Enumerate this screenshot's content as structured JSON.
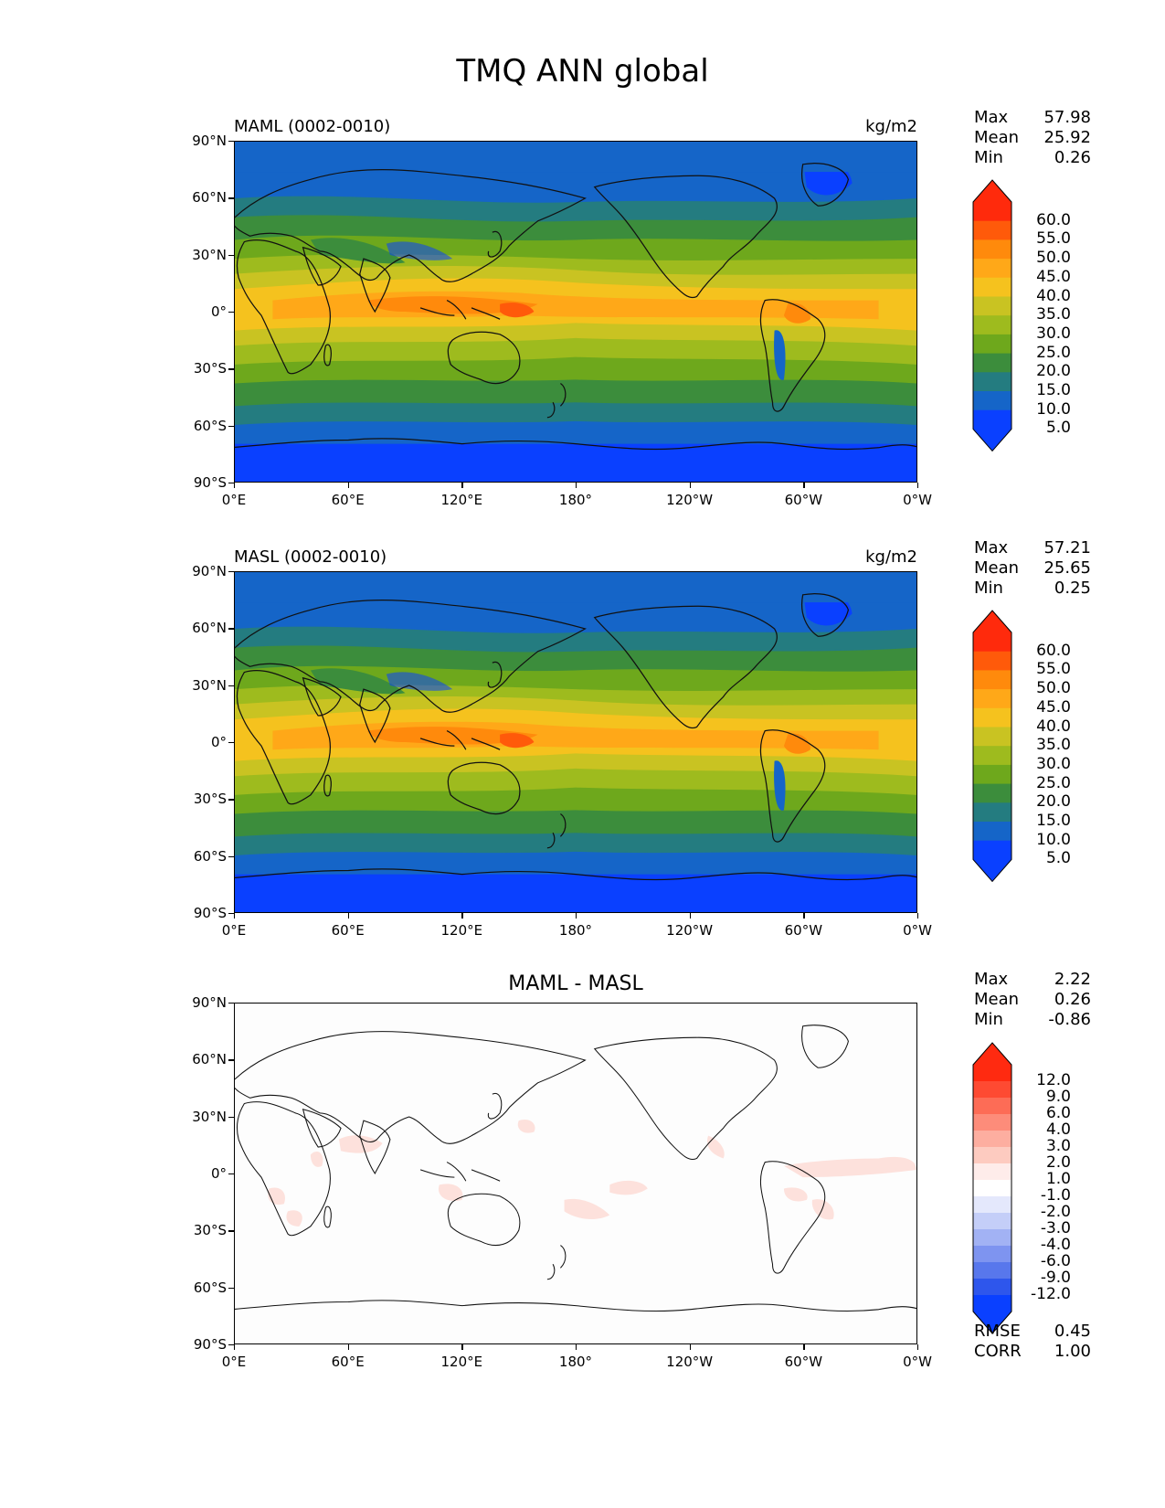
{
  "figure": {
    "title": "TMQ ANN global"
  },
  "axes": {
    "y_ticks": [
      "90°N",
      "60°N",
      "30°N",
      "0°",
      "30°S",
      "60°S",
      "90°S"
    ],
    "x_ticks": [
      "0°E",
      "60°E",
      "120°E",
      "180°",
      "120°W",
      "60°W",
      "0°W"
    ]
  },
  "panels": [
    {
      "left_title": "MAML (0002-0010)",
      "right_title": "kg/m2",
      "stats": [
        {
          "label": "Max",
          "value": "57.98"
        },
        {
          "label": "Mean",
          "value": "25.92"
        },
        {
          "label": "Min",
          "value": "0.26"
        }
      ]
    },
    {
      "left_title": "MASL (0002-0010)",
      "right_title": "kg/m2",
      "stats": [
        {
          "label": "Max",
          "value": "57.21"
        },
        {
          "label": "Mean",
          "value": "25.65"
        },
        {
          "label": "Min",
          "value": "0.25"
        }
      ]
    },
    {
      "center_title": "MAML - MASL",
      "stats": [
        {
          "label": "Max",
          "value": "2.22"
        },
        {
          "label": "Mean",
          "value": "0.26"
        },
        {
          "label": "Min",
          "value": "-0.86"
        }
      ],
      "extra_stats": [
        {
          "label": "RMSE",
          "value": "0.45"
        },
        {
          "label": "CORR",
          "value": "1.00"
        }
      ]
    }
  ],
  "colorbars": {
    "field": {
      "labels": [
        "60.0",
        "55.0",
        "50.0",
        "45.0",
        "40.0",
        "35.0",
        "30.0",
        "25.0",
        "20.0",
        "15.0",
        "10.0",
        "5.0"
      ],
      "colors": [
        "#ff2a0c",
        "#ff5a0a",
        "#ff8a0c",
        "#ffa818",
        "#f5c21e",
        "#c9c322",
        "#9ebb1e",
        "#6ea81c",
        "#3c8d3c",
        "#247c80",
        "#1565c8",
        "#0a40ff"
      ],
      "over_color": "#ff2a0c",
      "under_color": "#0a40ff"
    },
    "diff": {
      "labels": [
        "12.0",
        "9.0",
        "6.0",
        "4.0",
        "3.0",
        "2.0",
        "1.0",
        "-1.0",
        "-2.0",
        "-3.0",
        "-4.0",
        "-6.0",
        "-9.0",
        "-12.0"
      ],
      "colors": [
        "#ff2a10",
        "#fe4a32",
        "#fd6c56",
        "#fd8c7a",
        "#fdaea0",
        "#fdcbc0",
        "#feecea",
        "#ffffff",
        "#e4e8fc",
        "#c4cef8",
        "#a2b2f4",
        "#7e94f0",
        "#5877ec",
        "#2e56ec",
        "#0a40ff"
      ],
      "over_color": "#ff2a10",
      "under_color": "#0a40ff"
    }
  },
  "colors": {
    "ocean_deep": "#0a40ff",
    "high": "#ff5a0a",
    "diff_positive": "#fde1dc"
  }
}
